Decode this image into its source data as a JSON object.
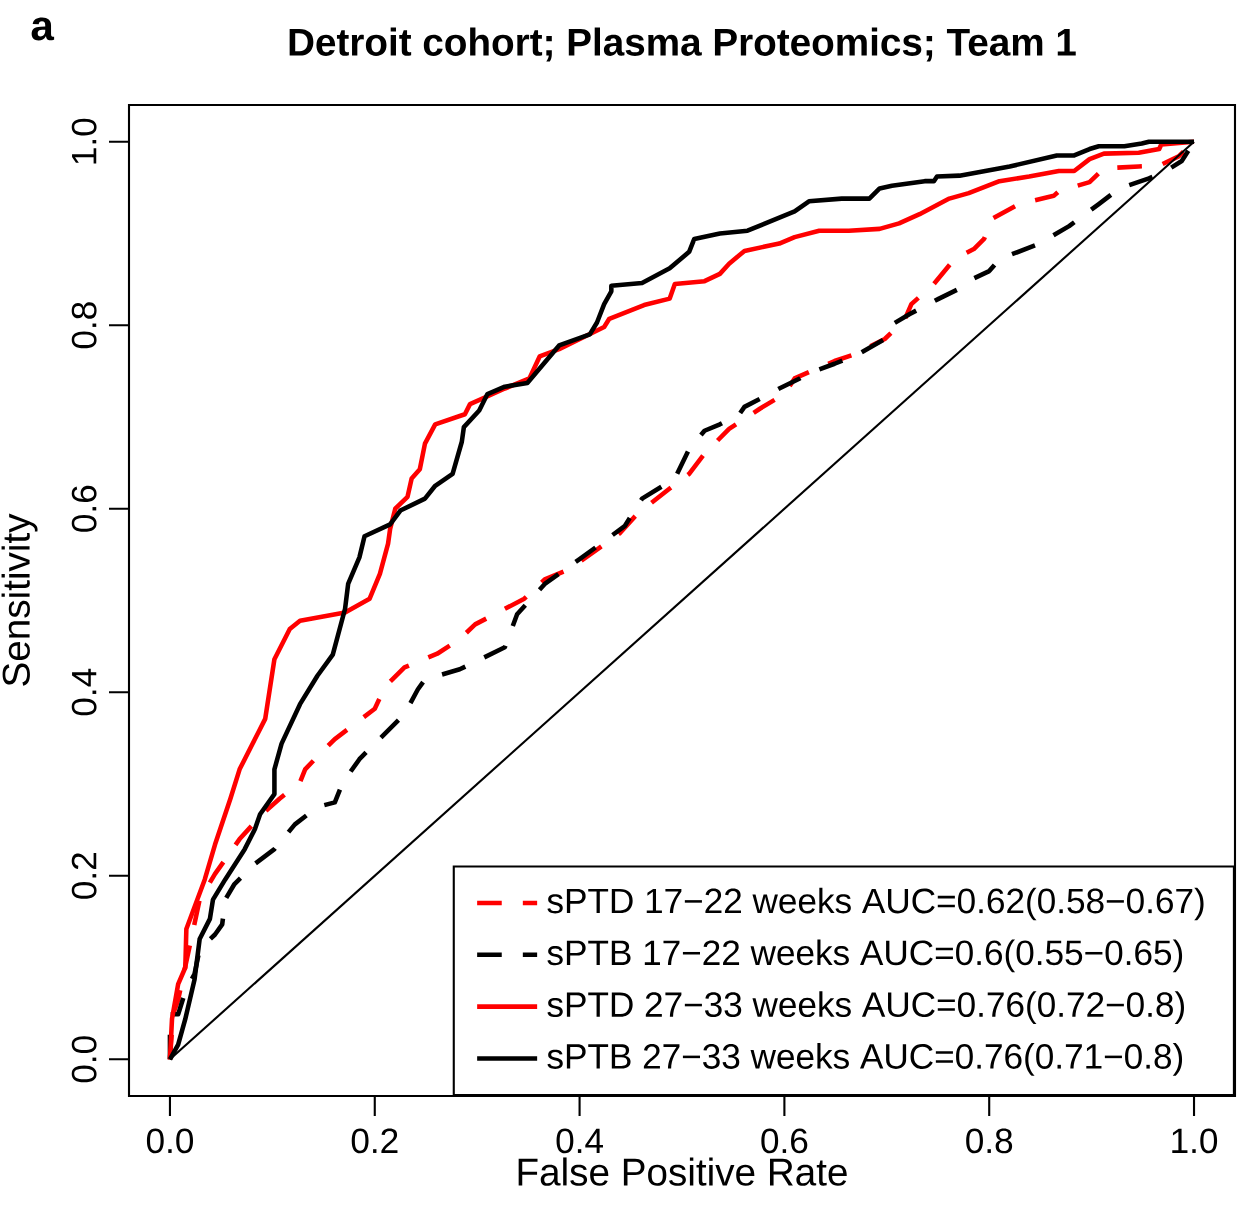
{
  "chart_data": {
    "type": "line",
    "title": "Detroit cohort; Plasma Proteomics; Team 1",
    "xlabel": "False Positive Rate",
    "ylabel": "Sensitivity",
    "annotations": [
      "a"
    ],
    "xlim": [
      -0.04,
      1.04
    ],
    "ylim": [
      -0.04,
      1.04
    ],
    "xticks": [
      {
        "value": 0,
        "label": "0.0"
      },
      0.2,
      0.4,
      0.6,
      0.8,
      {
        "value": 1,
        "label": "1.0"
      }
    ],
    "yticks": [
      {
        "value": 0,
        "label": "0.0"
      },
      0.2,
      0.4,
      0.6,
      0.8,
      {
        "value": 1,
        "label": "1.0"
      }
    ],
    "legend": "bottom right",
    "grid": false,
    "series": [
      {
        "name": "sPTD 17−22 weeks AUC=0.62(0.58−0.67)",
        "color": "#ff0000",
        "line_style": "dashed",
        "x": [
          0,
          0.002,
          0.003,
          0.008,
          0.029,
          0.044,
          0.068,
          0.09,
          0.107,
          0.127,
          0.132,
          0.144,
          0.161,
          0.18,
          0.2,
          0.21,
          0.229,
          0.261,
          0.283,
          0.298,
          0.317,
          0.346,
          0.366,
          0.39,
          0.42,
          0.439,
          0.456,
          0.488,
          0.507,
          0.522,
          0.546,
          0.576,
          0.6,
          0.61,
          0.624,
          0.649,
          0.668,
          0.698,
          0.717,
          0.724,
          0.746,
          0.766,
          0.785,
          0.795,
          0.803,
          0.829,
          0.863,
          0.868,
          0.898,
          0.912,
          0.946,
          0.966,
          0.985,
          0.995,
          1
        ],
        "values": [
          0,
          0.033,
          0.049,
          0.065,
          0.174,
          0.202,
          0.24,
          0.267,
          0.284,
          0.302,
          0.316,
          0.33,
          0.349,
          0.365,
          0.382,
          0.406,
          0.427,
          0.442,
          0.458,
          0.474,
          0.485,
          0.502,
          0.523,
          0.534,
          0.558,
          0.573,
          0.594,
          0.622,
          0.638,
          0.66,
          0.687,
          0.709,
          0.725,
          0.742,
          0.749,
          0.761,
          0.768,
          0.785,
          0.805,
          0.823,
          0.845,
          0.872,
          0.883,
          0.894,
          0.916,
          0.932,
          0.941,
          0.946,
          0.956,
          0.971,
          0.973,
          0.974,
          0.984,
          0.995,
          1
        ]
      },
      {
        "name": "sPTB 17−22 weeks AUC=0.6(0.55−0.65)",
        "color": "#000000",
        "line_style": "dashed",
        "x": [
          0,
          0,
          0.008,
          0.015,
          0.024,
          0.029,
          0.044,
          0.051,
          0.054,
          0.063,
          0.083,
          0.102,
          0.122,
          0.144,
          0.161,
          0.166,
          0.171,
          0.185,
          0.2,
          0.229,
          0.242,
          0.249,
          0.283,
          0.327,
          0.339,
          0.366,
          0.4,
          0.444,
          0.461,
          0.493,
          0.507,
          0.522,
          0.537,
          0.556,
          0.561,
          0.585,
          0.595,
          0.615,
          0.622,
          0.649,
          0.673,
          0.698,
          0.707,
          0.722,
          0.751,
          0.771,
          0.785,
          0.8,
          0.81,
          0.849,
          0.878,
          0.907,
          0.927,
          0.956,
          0.971,
          0.988,
          1
        ],
        "values": [
          0,
          0.049,
          0.049,
          0.074,
          0.093,
          0.12,
          0.136,
          0.147,
          0.174,
          0.191,
          0.213,
          0.229,
          0.256,
          0.275,
          0.28,
          0.294,
          0.305,
          0.327,
          0.344,
          0.376,
          0.403,
          0.414,
          0.425,
          0.449,
          0.485,
          0.518,
          0.545,
          0.581,
          0.611,
          0.633,
          0.665,
          0.685,
          0.692,
          0.703,
          0.711,
          0.725,
          0.731,
          0.742,
          0.747,
          0.758,
          0.769,
          0.785,
          0.802,
          0.812,
          0.829,
          0.84,
          0.851,
          0.859,
          0.872,
          0.889,
          0.908,
          0.932,
          0.949,
          0.96,
          0.967,
          0.979,
          1
        ]
      },
      {
        "name": "sPTD 27−33 weeks AUC=0.76(0.72−0.8)",
        "color": "#ff0000",
        "line_style": "solid",
        "x": [
          0,
          0.002,
          0.008,
          0.015,
          0.016,
          0.034,
          0.044,
          0.059,
          0.068,
          0.083,
          0.093,
          0.102,
          0.117,
          0.127,
          0.171,
          0.195,
          0.205,
          0.213,
          0.215,
          0.22,
          0.232,
          0.236,
          0.244,
          0.249,
          0.259,
          0.288,
          0.293,
          0.327,
          0.351,
          0.361,
          0.38,
          0.424,
          0.429,
          0.463,
          0.488,
          0.493,
          0.522,
          0.537,
          0.546,
          0.561,
          0.595,
          0.61,
          0.634,
          0.663,
          0.693,
          0.712,
          0.732,
          0.761,
          0.78,
          0.81,
          0.839,
          0.868,
          0.883,
          0.898,
          0.912,
          0.946,
          0.966,
          0.968,
          1
        ],
        "values": [
          0,
          0.044,
          0.082,
          0.1,
          0.142,
          0.196,
          0.234,
          0.284,
          0.316,
          0.349,
          0.371,
          0.436,
          0.469,
          0.478,
          0.487,
          0.502,
          0.529,
          0.562,
          0.578,
          0.6,
          0.613,
          0.633,
          0.643,
          0.671,
          0.692,
          0.703,
          0.714,
          0.731,
          0.742,
          0.766,
          0.774,
          0.798,
          0.807,
          0.822,
          0.829,
          0.845,
          0.848,
          0.856,
          0.867,
          0.881,
          0.889,
          0.896,
          0.903,
          0.903,
          0.905,
          0.911,
          0.921,
          0.938,
          0.944,
          0.957,
          0.962,
          0.968,
          0.968,
          0.981,
          0.987,
          0.988,
          0.992,
          0.997,
          1
        ]
      },
      {
        "name": "sPTB 27−33 weeks AUC=0.76(0.71−0.8)",
        "color": "#000000",
        "line_style": "solid",
        "x": [
          0,
          0.008,
          0.015,
          0.024,
          0.029,
          0.039,
          0.042,
          0.054,
          0.073,
          0.083,
          0.088,
          0.102,
          0.102,
          0.109,
          0.127,
          0.144,
          0.159,
          0.171,
          0.174,
          0.185,
          0.19,
          0.215,
          0.225,
          0.249,
          0.259,
          0.276,
          0.285,
          0.287,
          0.302,
          0.31,
          0.327,
          0.349,
          0.38,
          0.41,
          0.417,
          0.424,
          0.431,
          0.431,
          0.461,
          0.488,
          0.507,
          0.512,
          0.537,
          0.564,
          0.61,
          0.624,
          0.656,
          0.683,
          0.693,
          0.705,
          0.737,
          0.746,
          0.749,
          0.771,
          0.82,
          0.866,
          0.883,
          0.898,
          0.907,
          0.932,
          0.949,
          0.956,
          1
        ],
        "values": [
          0,
          0.016,
          0.044,
          0.087,
          0.131,
          0.153,
          0.174,
          0.196,
          0.229,
          0.251,
          0.267,
          0.289,
          0.316,
          0.344,
          0.387,
          0.418,
          0.441,
          0.491,
          0.518,
          0.547,
          0.57,
          0.583,
          0.598,
          0.611,
          0.625,
          0.638,
          0.673,
          0.689,
          0.707,
          0.725,
          0.733,
          0.737,
          0.778,
          0.79,
          0.803,
          0.823,
          0.837,
          0.843,
          0.846,
          0.862,
          0.88,
          0.894,
          0.9,
          0.903,
          0.924,
          0.935,
          0.938,
          0.938,
          0.949,
          0.952,
          0.957,
          0.957,
          0.962,
          0.963,
          0.973,
          0.985,
          0.985,
          0.992,
          0.995,
          0.995,
          0.998,
          1,
          1
        ]
      },
      {
        "color": "#000000",
        "line_style": "solid",
        "x": [
          0,
          1
        ],
        "values": [
          0,
          1
        ]
      }
    ]
  }
}
